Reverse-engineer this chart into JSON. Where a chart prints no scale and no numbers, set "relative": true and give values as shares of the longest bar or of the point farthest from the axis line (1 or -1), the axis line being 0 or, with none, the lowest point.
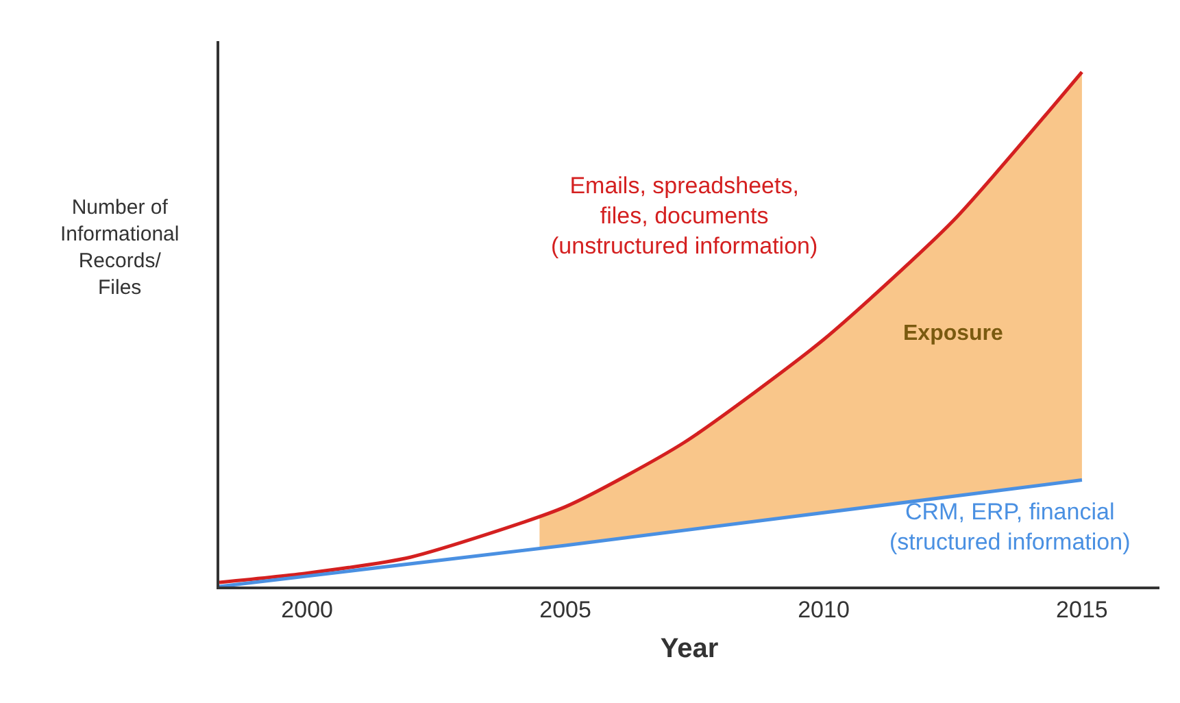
{
  "chart_data": {
    "type": "line",
    "relative": true,
    "xlabel": "Year",
    "ylabel": "Number of\nInformational\nRecords/\nFiles",
    "xlim": [
      1998.3,
      2016.5
    ],
    "xticks": [
      2000,
      2005,
      2010,
      2015
    ],
    "legend": false,
    "marker": "none",
    "line_style": "solid",
    "series": [
      {
        "type": "area",
        "color": "#f9c68a",
        "x": [
          2004.5,
          2005,
          2007.3,
          2010,
          2012.5,
          2015
        ],
        "values": [
          0.135,
          0.155,
          0.28,
          0.48,
          0.71,
          1.0
        ]
      },
      {
        "name": "Emails, spreadsheets,\nfiles, documents\n(unstructured information)",
        "color": "#d42020",
        "x": [
          1998.3,
          2000,
          2002,
          2005,
          2007.3,
          2010,
          2012.5,
          2015
        ],
        "values": [
          0.008,
          0.026,
          0.057,
          0.155,
          0.28,
          0.48,
          0.71,
          1.0
        ]
      },
      {
        "name": "CRM, ERP, financial\n(structured information)",
        "color": "#4a90e2",
        "x": [
          1998.3,
          2005,
          2015
        ],
        "values": [
          0,
          0.08,
          0.207
        ]
      }
    ],
    "annotations": [
      "Exposure"
    ]
  }
}
